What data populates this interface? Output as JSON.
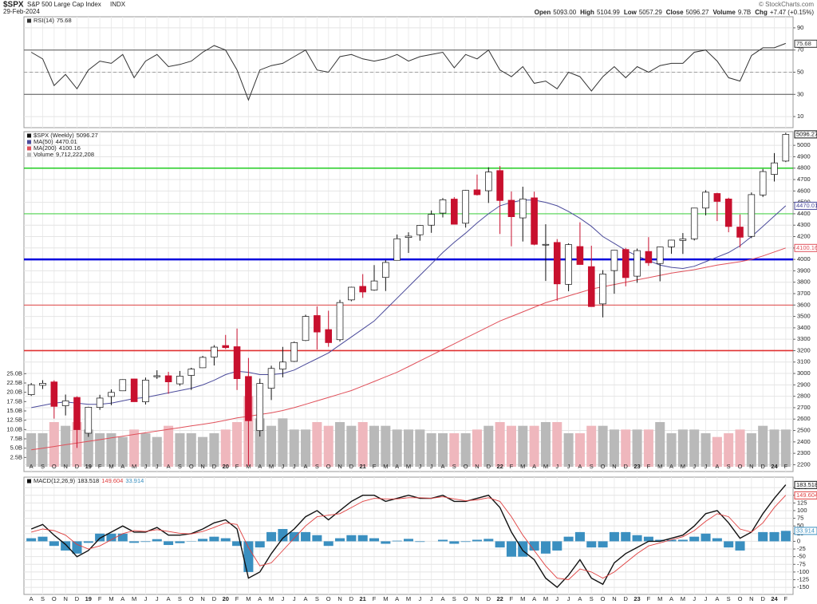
{
  "header": {
    "symbol": "$SPX",
    "name": "S&P 500 Large Cap Index",
    "exchange": "INDX",
    "date": "29-Feb-2024",
    "copyright": "© StockCharts.com",
    "quote": [
      {
        "label": "Open",
        "value": "5093.00"
      },
      {
        "label": "High",
        "value": "5104.99"
      },
      {
        "label": "Low",
        "value": "5057.29"
      },
      {
        "label": "Close",
        "value": "5096.27"
      },
      {
        "label": "Volume",
        "value": "9.7B"
      },
      {
        "label": "Chg",
        "value": "+7.47 (+0.15%)"
      }
    ]
  },
  "chart_data": [
    {
      "type": "line",
      "name": "RSI(14)",
      "last": 75.68,
      "color": "#333333",
      "values": [
        68,
        62,
        38,
        48,
        35,
        52,
        60,
        58,
        66,
        45,
        60,
        66,
        55,
        57,
        60,
        68,
        74,
        70,
        52,
        25,
        52,
        56,
        58,
        64,
        70,
        52,
        50,
        64,
        66,
        62,
        60,
        62,
        66,
        60,
        64,
        66,
        68,
        54,
        66,
        62,
        70,
        52,
        46,
        55,
        40,
        42,
        35,
        50,
        46,
        33,
        46,
        55,
        45,
        55,
        50,
        56,
        58,
        58,
        68,
        70,
        60,
        45,
        42,
        65,
        72,
        72,
        76
      ],
      "ylim": [
        0,
        100
      ],
      "yticks": [
        10,
        30,
        50,
        70,
        90
      ],
      "grid": true,
      "hlines": [
        {
          "value": 70,
          "color": "#555555",
          "style": "solid"
        },
        {
          "value": 50,
          "color": "#888888",
          "style": "dashed"
        },
        {
          "value": 30,
          "color": "#555555",
          "style": "solid"
        }
      ]
    },
    {
      "type": "candlestick",
      "name": "$SPX (Weekly)",
      "last": 5096.27,
      "up_color": "#ffffff",
      "down_color": "#c8102e",
      "categories": [
        "A",
        "S",
        "O",
        "N",
        "D",
        "19",
        "F",
        "M",
        "A",
        "M",
        "J",
        "J",
        "A",
        "S",
        "O",
        "N",
        "D",
        "20",
        "F",
        "M",
        "A",
        "M",
        "J",
        "J",
        "A",
        "S",
        "O",
        "N",
        "D",
        "21",
        "F",
        "M",
        "A",
        "M",
        "J",
        "J",
        "A",
        "S",
        "O",
        "N",
        "D",
        "22",
        "F",
        "M",
        "A",
        "M",
        "J",
        "J",
        "A",
        "S",
        "O",
        "N",
        "D",
        "23",
        "F",
        "M",
        "A",
        "M",
        "J",
        "J",
        "A",
        "S",
        "O",
        "N",
        "D",
        "24",
        "F"
      ],
      "open": [
        2814,
        2896,
        2926,
        2717,
        2790,
        2476,
        2702,
        2798,
        2848,
        2952,
        2751,
        2971,
        2980,
        2909,
        2983,
        3050,
        3144,
        3245,
        3235,
        2974,
        2499,
        2870,
        3038,
        3106,
        3289,
        3508,
        3385,
        3296,
        3645,
        3764,
        3731,
        3842,
        3992,
        4192,
        4216,
        4300,
        4406,
        4529,
        4317,
        4610,
        4602,
        4779,
        4519,
        4364,
        4540,
        4130,
        4149,
        3781,
        4113,
        3937,
        3610,
        3902,
        4087,
        3853,
        4070,
        3964,
        4110,
        4166,
        4180,
        4450,
        4578,
        4530,
        4284,
        4202,
        4565,
        4745,
        4862
      ],
      "high": [
        2916,
        2941,
        2940,
        2815,
        2800,
        2708,
        2813,
        2860,
        2949,
        2954,
        2964,
        3028,
        3014,
        3022,
        3050,
        3154,
        3248,
        3338,
        3394,
        3136,
        2955,
        3068,
        3233,
        3280,
        3515,
        3588,
        3550,
        3646,
        3760,
        3871,
        3950,
        3994,
        4218,
        4238,
        4302,
        4429,
        4538,
        4546,
        4608,
        4744,
        4808,
        4819,
        4596,
        4637,
        4594,
        4308,
        4178,
        4141,
        4325,
        4120,
        3906,
        4080,
        4101,
        4095,
        4195,
        4111,
        4170,
        4231,
        4449,
        4607,
        4584,
        4541,
        4394,
        4587,
        4793,
        4932,
        5111
      ],
      "low": [
        2803,
        2864,
        2604,
        2632,
        2347,
        2444,
        2681,
        2722,
        2848,
        2751,
        2728,
        2952,
        2822,
        2892,
        2855,
        3050,
        3070,
        3214,
        2855,
        2192,
        2447,
        2767,
        2966,
        3101,
        3284,
        3210,
        3234,
        3280,
        3633,
        3663,
        3725,
        3723,
        3992,
        4057,
        4164,
        4233,
        4368,
        4306,
        4279,
        4560,
        4495,
        4223,
        4115,
        4157,
        4124,
        3811,
        3637,
        3721,
        3954,
        3585,
        3492,
        3699,
        3764,
        3795,
        3944,
        3808,
        4049,
        4048,
        4166,
        4386,
        4336,
        4238,
        4104,
        4187,
        4547,
        4683,
        4853
      ],
      "close": [
        2901,
        2914,
        2711,
        2760,
        2507,
        2704,
        2784,
        2834,
        2946,
        2752,
        2942,
        2980,
        2926,
        2977,
        3038,
        3141,
        3231,
        3226,
        2954,
        2585,
        2912,
        3044,
        3100,
        3271,
        3500,
        3363,
        3270,
        3622,
        3756,
        3714,
        3811,
        3973,
        4181,
        4204,
        4298,
        4395,
        4523,
        4308,
        4605,
        4567,
        4766,
        4516,
        4374,
        4530,
        4132,
        4132,
        3785,
        4130,
        3955,
        3586,
        3872,
        4080,
        3840,
        4077,
        3970,
        4109,
        4169,
        4180,
        4450,
        4589,
        4508,
        4288,
        4194,
        4568,
        4770,
        4846,
        5096
      ],
      "series": [
        {
          "name": "MA(50)",
          "last": 4470.01,
          "color": "#4b4b9b",
          "values": [
            2700,
            2720,
            2740,
            2750,
            2740,
            2730,
            2730,
            2740,
            2760,
            2780,
            2790,
            2810,
            2830,
            2850,
            2870,
            2900,
            2940,
            2990,
            3020,
            3010,
            2990,
            2990,
            3000,
            3030,
            3080,
            3130,
            3180,
            3250,
            3320,
            3390,
            3460,
            3560,
            3660,
            3760,
            3860,
            3960,
            4060,
            4150,
            4230,
            4320,
            4400,
            4470,
            4500,
            4520,
            4520,
            4500,
            4470,
            4420,
            4360,
            4290,
            4200,
            4140,
            4080,
            4030,
            3990,
            3950,
            3930,
            3920,
            3940,
            3980,
            4020,
            4060,
            4120,
            4200,
            4290,
            4380,
            4470
          ]
        },
        {
          "name": "MA(200)",
          "last": 4100.16,
          "color": "#e0505a",
          "values": [
            2330,
            2345,
            2360,
            2375,
            2390,
            2405,
            2420,
            2435,
            2450,
            2465,
            2480,
            2495,
            2510,
            2525,
            2540,
            2555,
            2570,
            2590,
            2610,
            2625,
            2640,
            2655,
            2675,
            2700,
            2730,
            2760,
            2790,
            2820,
            2850,
            2890,
            2930,
            2970,
            3010,
            3060,
            3110,
            3160,
            3210,
            3260,
            3310,
            3360,
            3410,
            3460,
            3500,
            3540,
            3580,
            3620,
            3650,
            3680,
            3710,
            3740,
            3760,
            3780,
            3800,
            3820,
            3840,
            3860,
            3880,
            3895,
            3910,
            3930,
            3950,
            3965,
            3980,
            4000,
            4030,
            4065,
            4100
          ]
        }
      ],
      "ylim": [
        2140,
        5120
      ],
      "yticks": [
        2200,
        2300,
        2400,
        2500,
        2600,
        2700,
        2800,
        2900,
        3000,
        3100,
        3200,
        3300,
        3400,
        3500,
        3600,
        3700,
        3800,
        3900,
        4000,
        4100,
        4200,
        4300,
        4400,
        4500,
        4600,
        4700,
        4800,
        4900,
        5000
      ],
      "grid": true,
      "hlines": [
        {
          "value": 4800,
          "color": "#22cc22",
          "style": "medium"
        },
        {
          "value": 4400,
          "color": "#22cc22",
          "style": "light"
        },
        {
          "value": 4000,
          "color": "#0000dd",
          "style": "heavy"
        },
        {
          "value": 3600,
          "color": "#e03030",
          "style": "light"
        },
        {
          "value": 3200,
          "color": "#e03030",
          "style": "medium"
        }
      ]
    },
    {
      "type": "bar",
      "name": "Volume",
      "last": {
        "value": 9712222208,
        "label": "9,712,222,208"
      },
      "up_color": "#b9b9b9",
      "down_color": "#efb7bd",
      "values": [
        9,
        9,
        12,
        11,
        12,
        10,
        9,
        9,
        8,
        10,
        9,
        8,
        11,
        9,
        9,
        8,
        9,
        10,
        12,
        19,
        13,
        11,
        13,
        10,
        10,
        12,
        11,
        12,
        11,
        12,
        11,
        11,
        10,
        10,
        10,
        9,
        9,
        9,
        9,
        10,
        11,
        12,
        11,
        11,
        11,
        12,
        12,
        9,
        9,
        11,
        11,
        10,
        10,
        10,
        10,
        12,
        9,
        10,
        10,
        9,
        8,
        9,
        10,
        9,
        11,
        10,
        10
      ],
      "ylim": [
        0,
        90
      ],
      "yticks": [
        {
          "value": 2.5,
          "label": "2.5B"
        },
        {
          "value": 5,
          "label": "5.0B"
        },
        {
          "value": 7.5,
          "label": "7.5B"
        },
        {
          "value": 10,
          "label": "10.0B"
        },
        {
          "value": 12.5,
          "label": "12.5B"
        },
        {
          "value": 15,
          "label": "15.0B"
        },
        {
          "value": 17.5,
          "label": "17.5B"
        },
        {
          "value": 20,
          "label": "20.0B"
        },
        {
          "value": 22.5,
          "label": "22.5B"
        },
        {
          "value": 25,
          "label": "25.0B"
        }
      ]
    },
    {
      "type": "combo",
      "name": "MACD(12,26,9)",
      "categories": [
        "A",
        "S",
        "O",
        "N",
        "D",
        "19",
        "F",
        "M",
        "A",
        "M",
        "J",
        "J",
        "A",
        "S",
        "O",
        "N",
        "D",
        "20",
        "F",
        "M",
        "A",
        "M",
        "J",
        "J",
        "A",
        "S",
        "O",
        "N",
        "D",
        "21",
        "F",
        "M",
        "A",
        "M",
        "J",
        "J",
        "A",
        "S",
        "O",
        "N",
        "D",
        "22",
        "F",
        "M",
        "A",
        "M",
        "J",
        "J",
        "A",
        "S",
        "O",
        "N",
        "D",
        "23",
        "F",
        "M",
        "A",
        "M",
        "J",
        "J",
        "A",
        "S",
        "O",
        "N",
        "D",
        "24",
        "F"
      ],
      "series": [
        {
          "name": "MACD",
          "kind": "bar",
          "last": 33.914,
          "color": "#3a8fc0",
          "values": [
            10,
            15,
            -15,
            -30,
            -40,
            -5,
            25,
            25,
            25,
            -5,
            -2,
            7,
            -12,
            -6,
            1,
            8,
            15,
            10,
            -15,
            -100,
            -20,
            30,
            40,
            30,
            30,
            20,
            -15,
            10,
            20,
            20,
            10,
            -8,
            2,
            8,
            -2,
            0,
            5,
            -8,
            -2,
            5,
            8,
            -20,
            -50,
            -50,
            -30,
            -40,
            -30,
            15,
            30,
            -20,
            -20,
            30,
            30,
            20,
            15,
            5,
            5,
            5,
            15,
            25,
            10,
            -20,
            -30,
            0,
            30,
            30,
            34
          ]
        },
        {
          "name": "MACD",
          "kind": "line",
          "last": 183.518,
          "color": "#111111",
          "values": [
            40,
            55,
            20,
            -10,
            -50,
            -30,
            10,
            30,
            50,
            30,
            30,
            45,
            20,
            20,
            25,
            40,
            60,
            70,
            40,
            -120,
            -100,
            -40,
            10,
            40,
            80,
            100,
            70,
            100,
            130,
            150,
            150,
            130,
            140,
            150,
            140,
            140,
            150,
            130,
            130,
            140,
            150,
            110,
            30,
            -30,
            -60,
            -120,
            -150,
            -110,
            -60,
            -120,
            -140,
            -70,
            -40,
            -20,
            0,
            0,
            10,
            20,
            50,
            90,
            100,
            60,
            10,
            30,
            90,
            140,
            184
          ]
        },
        {
          "name": "Signal",
          "kind": "line",
          "last": 149.604,
          "color": "#e04040",
          "values": [
            30,
            40,
            35,
            20,
            -10,
            -25,
            -15,
            5,
            25,
            35,
            32,
            38,
            32,
            26,
            24,
            32,
            45,
            60,
            55,
            -20,
            -80,
            -70,
            -30,
            10,
            50,
            80,
            85,
            90,
            110,
            130,
            140,
            138,
            138,
            142,
            142,
            140,
            145,
            138,
            132,
            135,
            142,
            130,
            80,
            20,
            -30,
            -80,
            -120,
            -125,
            -90,
            -100,
            -120,
            -100,
            -70,
            -40,
            -15,
            -5,
            5,
            15,
            35,
            65,
            90,
            80,
            40,
            30,
            60,
            110,
            150
          ]
        }
      ],
      "ylim": [
        -173,
        209
      ],
      "yticks": [
        -150,
        -125,
        -100,
        -75,
        -50,
        -25,
        0,
        25,
        50,
        75,
        100,
        125,
        150,
        175
      ],
      "grid": true
    }
  ]
}
